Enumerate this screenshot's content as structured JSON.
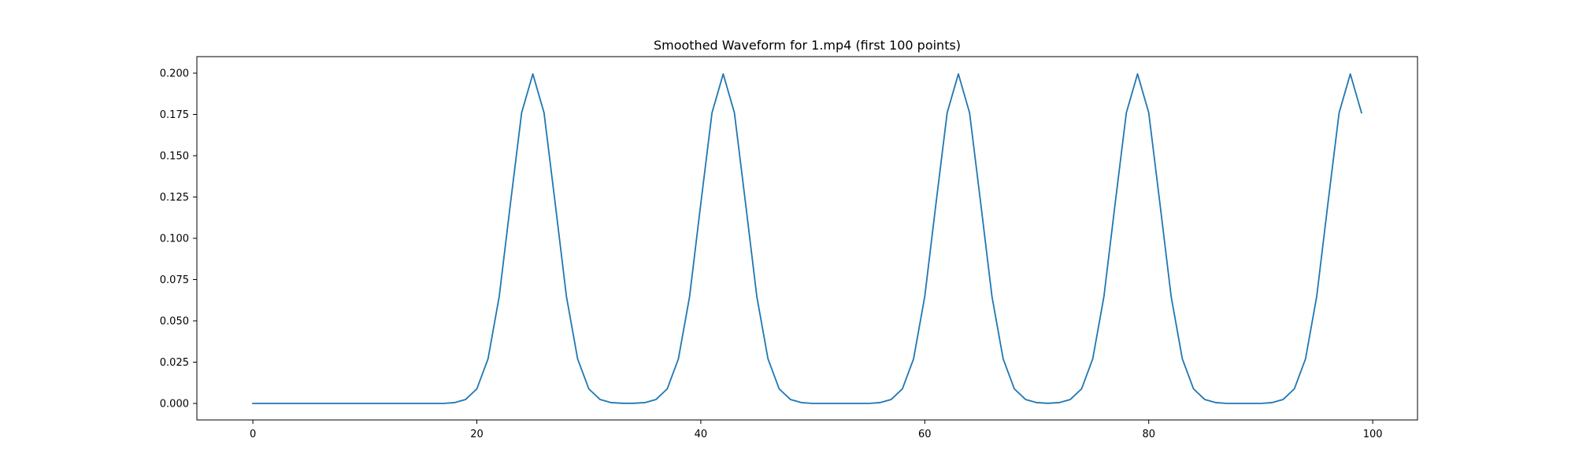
{
  "chart_data": {
    "type": "line",
    "title": "Smoothed Waveform for 1.mp4 (first 100 points)",
    "xlabel": "",
    "ylabel": "",
    "xlim": [
      -5,
      104
    ],
    "ylim": [
      -0.01,
      0.21
    ],
    "xticks": [
      0,
      20,
      40,
      60,
      80,
      100
    ],
    "xtick_labels": [
      "0",
      "20",
      "40",
      "60",
      "80",
      "100"
    ],
    "yticks": [
      0,
      0.025,
      0.05,
      0.075,
      0.1,
      0.125,
      0.15,
      0.175,
      0.2
    ],
    "ytick_labels": [
      "0.000",
      "0.025",
      "0.050",
      "0.075",
      "0.100",
      "0.125",
      "0.150",
      "0.175",
      "0.200"
    ],
    "grid": false,
    "legend": "none",
    "series": [
      {
        "color": "#1f77b4",
        "x": [
          0,
          1,
          2,
          3,
          4,
          5,
          6,
          7,
          8,
          9,
          10,
          11,
          12,
          13,
          14,
          15,
          16,
          17,
          18,
          19,
          20,
          21,
          22,
          23,
          24,
          25,
          26,
          27,
          28,
          29,
          30,
          31,
          32,
          33,
          34,
          35,
          36,
          37,
          38,
          39,
          40,
          41,
          42,
          43,
          44,
          45,
          46,
          47,
          48,
          49,
          50,
          51,
          52,
          53,
          54,
          55,
          56,
          57,
          58,
          59,
          60,
          61,
          62,
          63,
          64,
          65,
          66,
          67,
          68,
          69,
          70,
          71,
          72,
          73,
          74,
          75,
          76,
          77,
          78,
          79,
          80,
          81,
          82,
          83,
          84,
          85,
          86,
          87,
          88,
          89,
          90,
          91,
          92,
          93,
          94,
          95,
          96,
          97,
          98,
          99
        ],
        "y": [
          0,
          0,
          0,
          0,
          0,
          0,
          0,
          0,
          0,
          0,
          0,
          0,
          0,
          0,
          0,
          0,
          0,
          0,
          0.0005,
          0.0024,
          0.0088,
          0.027,
          0.0648,
          0.121,
          0.176,
          0.1995,
          0.176,
          0.121,
          0.0648,
          0.027,
          0.0088,
          0.0024,
          0.0005,
          0.0001,
          0.0001,
          0.0005,
          0.0024,
          0.0088,
          0.027,
          0.0648,
          0.121,
          0.176,
          0.1995,
          0.176,
          0.121,
          0.0648,
          0.027,
          0.0088,
          0.0024,
          0.0005,
          0,
          0,
          0,
          0,
          0,
          0,
          0.0005,
          0.0024,
          0.0088,
          0.027,
          0.0648,
          0.121,
          0.176,
          0.1995,
          0.176,
          0.121,
          0.0648,
          0.027,
          0.0088,
          0.0024,
          0.0005,
          0.0001,
          0.0005,
          0.0024,
          0.0088,
          0.027,
          0.0648,
          0.121,
          0.176,
          0.1995,
          0.176,
          0.121,
          0.0648,
          0.027,
          0.0088,
          0.0024,
          0.0005,
          0,
          0,
          0,
          0,
          0.0005,
          0.0024,
          0.0088,
          0.027,
          0.0648,
          0.121,
          0.176,
          0.1995,
          0.176
        ]
      }
    ]
  }
}
